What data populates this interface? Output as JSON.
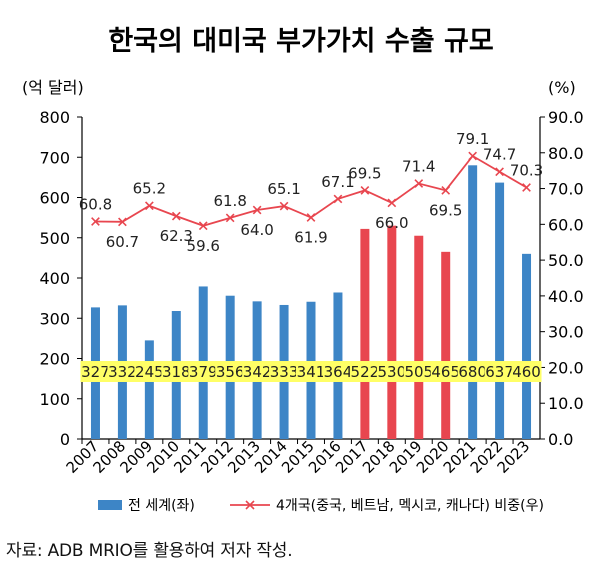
{
  "chart_data": {
    "type": "bar+line",
    "title": "한국의 대미국 부가가치 수출 규모",
    "y_left_unit": "(억 달러)",
    "y_right_unit": "(%)",
    "y_left_ticks": [
      "0",
      "100",
      "200",
      "300",
      "400",
      "500",
      "600",
      "700",
      "800"
    ],
    "y_right_ticks": [
      "0.0",
      "10.0",
      "20.0",
      "30.0",
      "40.0",
      "50.0",
      "60.0",
      "70.0",
      "80.0",
      "90.0"
    ],
    "ylim_left": [
      0,
      800
    ],
    "ylim_right": [
      0,
      90
    ],
    "categories": [
      "2007",
      "2008",
      "2009",
      "2010",
      "2011",
      "2012",
      "2013",
      "2014",
      "2015",
      "2016",
      "2017",
      "2018",
      "2019",
      "2020",
      "2021",
      "2022",
      "2023"
    ],
    "series": [
      {
        "name": "전 세계(좌)",
        "kind": "bar",
        "axis": "left",
        "values": [
          327,
          332,
          245,
          318,
          379,
          356,
          342,
          333,
          341,
          364,
          522,
          530,
          505,
          465,
          680,
          637,
          460
        ],
        "color": "#3d85c6",
        "highlight_color": "#e8464f",
        "highlight_categories": [
          "2017",
          "2018",
          "2019",
          "2020"
        ]
      },
      {
        "name": "4개국(중국, 베트남, 멕시코, 캐나다) 비중(우)",
        "kind": "line",
        "axis": "right",
        "values": [
          60.8,
          60.7,
          65.2,
          62.3,
          59.6,
          61.8,
          64.0,
          65.1,
          61.9,
          67.1,
          69.5,
          66.0,
          71.4,
          69.5,
          79.1,
          74.7,
          70.3
        ],
        "labels": [
          "60.8",
          "60.7",
          "65.2",
          "62.3",
          "59.6",
          "61.8",
          "64.0",
          "65.1",
          "61.9",
          "67.1",
          "69.5",
          "66.0",
          "71.4",
          "69.5",
          "79.1",
          "74.7",
          "70.3"
        ],
        "color": "#e8464f",
        "marker": "x"
      }
    ],
    "bar_label_background": "#ffff66",
    "legend_position": "bottom",
    "grid": false
  },
  "source": "자료: ADB MRIO를 활용하여 저자 작성."
}
